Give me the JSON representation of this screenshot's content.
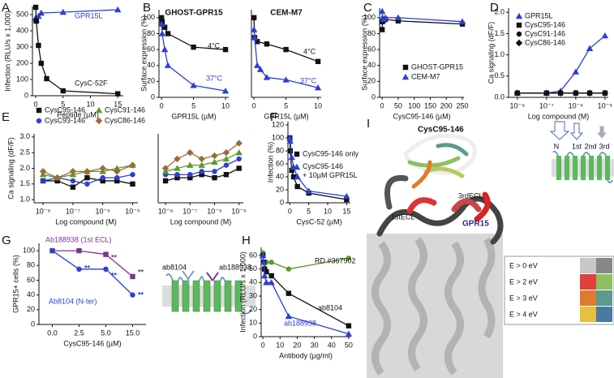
{
  "chart_data": [
    {
      "type": "line",
      "panel": "A",
      "ylabel": "Infection (RLU/s x 1,000)",
      "xlabel": "Peptide (µM)",
      "xlim": [
        -0.6,
        16
      ],
      "ylim": [
        0,
        550
      ],
      "xticks": [
        0,
        5,
        10,
        15
      ],
      "yticks": [
        0,
        100,
        200,
        300,
        400,
        500
      ],
      "series": [
        {
          "name": "GPR15L",
          "color": "#2d3fd4",
          "marker": "triangle",
          "x": [
            0,
            0.1,
            0.5,
            1,
            5,
            15
          ],
          "values": [
            480,
            470,
            490,
            510,
            515,
            530
          ]
        },
        {
          "name": "CysC-52F",
          "color": "#111111",
          "marker": "square",
          "x": [
            0,
            0.1,
            0.5,
            1,
            2,
            5,
            15
          ],
          "values": [
            545,
            460,
            310,
            200,
            105,
            30,
            12
          ]
        }
      ]
    },
    {
      "type": "line",
      "panel": "B",
      "title": "GHOST-GPR15",
      "ylabel": "Surface expression (%)",
      "xlabel": "GPR15L (µM)",
      "xlim": [
        -0.4,
        10.5
      ],
      "ylim": [
        0,
        110
      ],
      "xticks": [
        0,
        5,
        10
      ],
      "yticks": [
        0,
        20,
        40,
        60,
        80,
        100
      ],
      "series": [
        {
          "name": "4°C",
          "color": "#111111",
          "marker": "square",
          "x": [
            0,
            0.1,
            0.5,
            1,
            5,
            10
          ],
          "values": [
            100,
            95,
            88,
            80,
            63,
            60
          ]
        },
        {
          "name": "37°C",
          "color": "#2d3fd4",
          "marker": "triangle",
          "x": [
            0,
            0.1,
            0.5,
            1,
            5,
            10
          ],
          "values": [
            92,
            80,
            60,
            40,
            15,
            8
          ]
        }
      ]
    },
    {
      "type": "line",
      "title": "CEM-M7",
      "xlabel": "GPR15L (µM)",
      "xlim": [
        -0.4,
        10.5
      ],
      "ylim": [
        0,
        110
      ],
      "xticks": [
        0,
        5,
        10
      ],
      "series": [
        {
          "name": "4°C",
          "color": "#111111",
          "marker": "square",
          "x": [
            0,
            0.1,
            0.5,
            2,
            5,
            10
          ],
          "values": [
            100,
            75,
            70,
            67,
            60,
            45
          ]
        },
        {
          "name": "37°C",
          "color": "#2d3fd4",
          "marker": "triangle",
          "x": [
            0,
            0.1,
            0.5,
            1,
            2,
            5,
            10
          ],
          "values": [
            85,
            75,
            40,
            35,
            25,
            22,
            12
          ]
        }
      ]
    },
    {
      "type": "line",
      "panel": "C",
      "ylabel": "Surface expression (%)",
      "xlabel": "CysC95-146 (µM)",
      "xlim": [
        -8,
        255
      ],
      "ylim": [
        0,
        112
      ],
      "xticks": [
        0,
        50,
        100,
        150,
        200,
        250
      ],
      "yticks": [
        0,
        20,
        40,
        60,
        80,
        100
      ],
      "legend": "lower right",
      "series": [
        {
          "name": "GHOST-GPR15",
          "color": "#111111",
          "marker": "square",
          "x": [
            0,
            1,
            5,
            10,
            50,
            250
          ],
          "values": [
            85,
            95,
            97,
            98,
            96,
            92
          ]
        },
        {
          "name": "CEM-M7",
          "color": "#2d3fd4",
          "marker": "triangle",
          "x": [
            0,
            1,
            5,
            10,
            50,
            250
          ],
          "values": [
            108,
            100,
            98,
            100,
            100,
            95
          ]
        }
      ]
    },
    {
      "type": "line",
      "panel": "D",
      "ylabel": "Ca signaling (dF/F)",
      "xlabel": "Log compound (M)",
      "xscale": "log",
      "xlim": [
        5e-09,
        1.3e-05
      ],
      "ylim": [
        0,
        2.1
      ],
      "xticks": [
        {
          "value": 1e-08,
          "label": "10⁻⁸"
        },
        {
          "value": 1e-07,
          "label": "10⁻⁷"
        },
        {
          "value": 1e-06,
          "label": "10⁻⁶"
        },
        {
          "value": 1e-05,
          "label": "10⁻⁵"
        }
      ],
      "yticks": [
        {
          "value": 0,
          "label": "0.0"
        },
        0.5,
        {
          "value": 1,
          "label": "1.0"
        },
        1.5,
        {
          "value": 2,
          "label": "2.0"
        }
      ],
      "legend": "upper left",
      "x": [
        1e-08,
        1e-07,
        3e-07,
        1e-06,
        3e-06,
        1e-05
      ],
      "series": [
        {
          "name": "GPR15L",
          "color": "#2d3fd4",
          "marker": "triangle",
          "values": [
            0.1,
            0.1,
            0.15,
            0.6,
            1.15,
            1.45
          ]
        },
        {
          "name": "CysC95-146",
          "color": "#111111",
          "marker": "square",
          "values": [
            0.1,
            0.1,
            0.1,
            0.1,
            0.1,
            0.1
          ]
        },
        {
          "name": "CysC91-146",
          "color": "#111111",
          "marker": "circle",
          "values": [
            0.1,
            0.1,
            0.1,
            0.1,
            0.1,
            0.1
          ]
        },
        {
          "name": "CysC86-146",
          "color": "#111111",
          "marker": "diamond",
          "values": [
            0.1,
            0.1,
            0.1,
            0.1,
            0.1,
            0.1
          ]
        }
      ]
    },
    {
      "type": "line",
      "panel": "E",
      "ylabel": "Ca signaling (dF/F)",
      "xlabel": "Log compound (M)",
      "xscale": "log",
      "xlim": [
        5e-09,
        1.5e-05
      ],
      "ylim": [
        0.9,
        3.1
      ],
      "xticks": [
        {
          "value": 1e-08,
          "label": "10⁻⁸"
        },
        {
          "value": 1e-07,
          "label": "10⁻⁷"
        },
        {
          "value": 1e-06,
          "label": "10⁻⁶"
        },
        {
          "value": 1e-05,
          "label": "10⁻⁵"
        }
      ],
      "yticks": [
        {
          "value": 1,
          "label": "1.0"
        },
        1.5,
        {
          "value": 2,
          "label": "2.0"
        },
        2.5,
        {
          "value": 3,
          "label": "3.0"
        }
      ],
      "legend": "top",
      "x": [
        1e-08,
        3e-08,
        1e-07,
        3e-07,
        1e-06,
        3e-06,
        1e-05
      ],
      "series": [
        {
          "name": "CysC95-146",
          "color": "#111111",
          "marker": "square",
          "values": [
            1.6,
            1.6,
            1.4,
            1.7,
            1.6,
            1.6,
            1.5
          ]
        },
        {
          "name": "CysC93-146",
          "color": "#2d3fd4",
          "marker": "circle",
          "values": [
            1.6,
            1.7,
            1.6,
            1.5,
            1.7,
            1.7,
            1.8
          ]
        },
        {
          "name": "CysC91-146",
          "color": "#5a9a2a",
          "marker": "triangle",
          "values": [
            1.8,
            1.7,
            1.8,
            1.9,
            1.9,
            2.0,
            2.1
          ]
        },
        {
          "name": "CysC86-146",
          "color": "#9a6a3a",
          "marker": "diamond",
          "values": [
            1.9,
            1.7,
            1.9,
            1.9,
            2.0,
            1.9,
            2.1
          ]
        }
      ]
    },
    {
      "type": "line",
      "xlabel": "Log compound (M)",
      "xscale": "log",
      "xlim": [
        5e-09,
        1.5e-05
      ],
      "ylim": [
        0.9,
        3.1
      ],
      "xticks": [
        {
          "value": 1e-08,
          "label": "10⁻⁸"
        },
        {
          "value": 1e-07,
          "label": "10⁻⁷"
        },
        {
          "value": 1e-06,
          "label": "10⁻⁶"
        },
        {
          "value": 1e-05,
          "label": "10⁻⁵"
        }
      ],
      "x": [
        1e-08,
        3e-08,
        1e-07,
        3e-07,
        1e-06,
        3e-06,
        1e-05
      ],
      "series": [
        {
          "color": "#111111",
          "marker": "square",
          "values": [
            1.6,
            1.7,
            1.7,
            1.8,
            1.7,
            1.8,
            2.0
          ]
        },
        {
          "color": "#2d3fd4",
          "marker": "circle",
          "values": [
            1.8,
            1.8,
            1.8,
            1.9,
            1.9,
            2.1,
            2.3
          ]
        },
        {
          "color": "#5a9a2a",
          "marker": "triangle",
          "values": [
            1.9,
            2.0,
            2.1,
            2.1,
            2.2,
            2.3,
            2.5
          ]
        },
        {
          "color": "#9a6a3a",
          "marker": "diamond",
          "values": [
            2.0,
            2.3,
            2.5,
            2.3,
            2.4,
            2.5,
            2.8
          ]
        }
      ]
    },
    {
      "type": "line",
      "panel": "F",
      "ylabel": "Infection (%)",
      "xlabel": "CysC-52 (µM)",
      "xlim": [
        -0.5,
        16
      ],
      "ylim": [
        0,
        125
      ],
      "xticks": [
        0,
        5,
        10,
        15
      ],
      "yticks": [
        0,
        20,
        40,
        60,
        80,
        100,
        120
      ],
      "legend": "center right",
      "series": [
        {
          "name": "CysC95-146 only",
          "color": "#111111",
          "marker": "square",
          "x": [
            0,
            0.1,
            0.5,
            1,
            2,
            5,
            15
          ],
          "values": [
            100,
            80,
            50,
            40,
            25,
            15,
            5
          ]
        },
        {
          "name": "CysC95-146 + 10µM GPR15L",
          "color": "#2d3fd4",
          "marker": "triangle",
          "x": [
            0,
            0.1,
            0.5,
            1,
            2,
            5,
            15
          ],
          "values": [
            100,
            95,
            70,
            55,
            40,
            18,
            10
          ]
        }
      ]
    },
    {
      "type": "line",
      "panel": "G",
      "ylabel": "GPR15+ cells (%)",
      "xlabel": "CysC95-146 (µM)",
      "categories": [
        "0.0",
        "2.5",
        "5.0",
        "15.0"
      ],
      "ylim": [
        0,
        110
      ],
      "yticks": [
        0,
        20,
        40,
        60,
        80,
        100
      ],
      "series": [
        {
          "name": "Ab188938 (1st ECL)",
          "color": "#7a3590",
          "marker": "square",
          "values": [
            100,
            100,
            95,
            65
          ]
        },
        {
          "name": "Ab8104 (N-ter)",
          "color": "#2d3fd4",
          "marker": "circle",
          "values": [
            100,
            75,
            75,
            40
          ]
        }
      ],
      "annotations": [
        {
          "text": "**",
          "color": "#2d3fd4"
        },
        {
          "text": "**",
          "color": "#7a3590"
        },
        {
          "text": "**",
          "color": "#2d3fd4"
        },
        {
          "text": "**",
          "color": "#7a3590"
        },
        {
          "text": "**",
          "color": "#2d3fd4"
        }
      ]
    },
    {
      "type": "line",
      "panel": "H",
      "ylabel": "Infection (RLU/s x 1,000)",
      "xlabel": "Antibody (µg/ml)",
      "xlim": [
        -1,
        51
      ],
      "ylim": [
        0,
        66
      ],
      "xticks": [
        0,
        10,
        20,
        30,
        40,
        50
      ],
      "yticks": [
        0,
        10,
        20,
        30,
        40,
        50,
        60
      ],
      "x": [
        0,
        0.5,
        1,
        2,
        5,
        15,
        50
      ],
      "series": [
        {
          "name": "RD #367902",
          "color": "#5a9a2a",
          "marker": "circle",
          "values": [
            62,
            55,
            50,
            55,
            55,
            50,
            58
          ]
        },
        {
          "name": "ab8104",
          "color": "#111111",
          "marker": "square",
          "values": [
            60,
            55,
            50,
            48,
            45,
            32,
            8
          ]
        },
        {
          "name": "ab188938",
          "color": "#2d3fd4",
          "marker": "triangle",
          "values": [
            60,
            55,
            45,
            40,
            40,
            15,
            2
          ]
        }
      ]
    }
  ],
  "panel_g_diagram": {
    "labels": [
      "ab8104",
      "ab188938"
    ]
  },
  "panel_i": {
    "panel": "I",
    "ligand": "CysC95-146",
    "receptor": "GPR15",
    "loops": [
      "1stECL",
      "3rdECL"
    ],
    "topology": [
      "N",
      "1st",
      "2nd",
      "3rd"
    ],
    "energy_key": [
      "E > 0 eV",
      "E > 2 eV",
      "E > 3 eV",
      "E > 4 eV"
    ]
  }
}
